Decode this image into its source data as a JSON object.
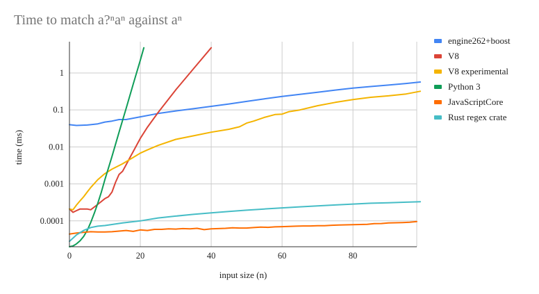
{
  "chart_data": {
    "type": "line",
    "title": "Time to match a?ⁿaⁿ against aⁿ",
    "xlabel": "input size (n)",
    "ylabel": "time (ms)",
    "xlim": [
      0,
      98
    ],
    "ylim": [
      2e-05,
      7
    ],
    "yscale": "log",
    "grid": true,
    "legend_position": "right",
    "x_ticks": [
      0,
      20,
      40,
      60,
      80
    ],
    "x_tick_labels": [
      "0",
      "20",
      "40",
      "60",
      "80"
    ],
    "y_ticks": [
      0.0001,
      0.001,
      0.01,
      0.1,
      1
    ],
    "y_tick_labels": [
      "0.0001",
      "0.001",
      "0.01",
      "0.1",
      "1"
    ],
    "series": [
      {
        "name": "engine262+boost",
        "color": "#4285f4",
        "x": [
          0,
          2,
          5,
          8,
          10,
          12,
          14,
          16,
          20,
          25,
          30,
          35,
          40,
          45,
          50,
          55,
          60,
          65,
          70,
          75,
          80,
          85,
          90,
          95,
          99
        ],
        "y": [
          0.04,
          0.038,
          0.039,
          0.042,
          0.047,
          0.05,
          0.055,
          0.055,
          0.065,
          0.08,
          0.094,
          0.108,
          0.125,
          0.145,
          0.17,
          0.2,
          0.232,
          0.265,
          0.3,
          0.345,
          0.39,
          0.43,
          0.47,
          0.52,
          0.57
        ]
      },
      {
        "name": "V8",
        "color": "#db4437",
        "x": [
          0,
          1,
          2,
          3,
          5,
          6,
          8,
          10,
          11,
          12,
          13,
          14,
          15,
          16,
          17,
          18,
          20,
          22,
          25,
          30,
          35,
          40
        ],
        "y": [
          0.00021,
          0.00017,
          0.00019,
          0.00021,
          0.00021,
          0.0002,
          0.00028,
          0.0004,
          0.00045,
          0.0006,
          0.0011,
          0.0018,
          0.0022,
          0.0033,
          0.005,
          0.0075,
          0.017,
          0.034,
          0.085,
          0.35,
          1.3,
          4.8
        ]
      },
      {
        "name": "V8 experimental",
        "color": "#f4b400",
        "x": [
          0,
          1,
          2,
          3,
          4,
          5,
          6,
          8,
          10,
          12,
          15,
          18,
          20,
          22,
          25,
          30,
          35,
          40,
          45,
          48,
          50,
          52,
          55,
          58,
          60,
          62,
          65,
          70,
          75,
          80,
          85,
          90,
          95,
          99
        ],
        "y": [
          0.00021,
          0.0002,
          0.00027,
          0.00035,
          0.00045,
          0.0006,
          0.0008,
          0.0013,
          0.0019,
          0.0025,
          0.0035,
          0.0052,
          0.0068,
          0.0083,
          0.011,
          0.016,
          0.02,
          0.025,
          0.03,
          0.035,
          0.044,
          0.05,
          0.063,
          0.075,
          0.077,
          0.09,
          0.1,
          0.13,
          0.16,
          0.19,
          0.22,
          0.24,
          0.27,
          0.32
        ]
      },
      {
        "name": "Python 3",
        "color": "#0f9d58",
        "x": [
          0,
          1,
          2,
          3,
          4,
          5,
          6,
          7,
          8,
          9,
          10,
          12,
          14,
          16,
          18,
          20,
          21
        ],
        "y": [
          2e-05,
          2.1e-05,
          2.4e-05,
          2.9e-05,
          3.8e-05,
          5.5e-05,
          9e-05,
          0.00016,
          0.0003,
          0.0006,
          0.0013,
          0.0055,
          0.025,
          0.11,
          0.5,
          2.2,
          4.8
        ]
      },
      {
        "name": "JavaScriptCore",
        "color": "#ff6d00",
        "x": [
          0,
          2,
          4,
          6,
          8,
          10,
          12,
          14,
          16,
          18,
          20,
          22,
          24,
          26,
          28,
          30,
          32,
          34,
          36,
          38,
          40,
          42,
          44,
          46,
          48,
          50,
          52,
          54,
          56,
          58,
          60,
          62,
          64,
          66,
          68,
          70,
          72,
          74,
          76,
          78,
          80,
          82,
          84,
          86,
          88,
          90,
          92,
          94,
          96,
          98
        ],
        "y": [
          4.4e-05,
          4.7e-05,
          4.9e-05,
          5.1e-05,
          5e-05,
          5e-05,
          5.1e-05,
          5.3e-05,
          5.5e-05,
          5.2e-05,
          5.7e-05,
          5.5e-05,
          5.9e-05,
          5.9e-05,
          6.1e-05,
          6e-05,
          6.2e-05,
          6.1e-05,
          6.3e-05,
          5.8e-05,
          6.1e-05,
          6.2e-05,
          6.3e-05,
          6.5e-05,
          6.4e-05,
          6.4e-05,
          6.6e-05,
          6.8e-05,
          6.7e-05,
          6.9e-05,
          7e-05,
          7.1e-05,
          7.2e-05,
          7.3e-05,
          7.3e-05,
          7.4e-05,
          7.4e-05,
          7.6e-05,
          7.7e-05,
          7.8e-05,
          7.9e-05,
          8e-05,
          8.1e-05,
          8.4e-05,
          8.5e-05,
          8.8e-05,
          8.9e-05,
          9e-05,
          9.2e-05,
          9.6e-05
        ]
      },
      {
        "name": "Rust regex crate",
        "color": "#46bdc6",
        "x": [
          0,
          2,
          4,
          6,
          8,
          10,
          15,
          20,
          25,
          30,
          35,
          40,
          45,
          50,
          55,
          60,
          65,
          70,
          75,
          80,
          85,
          90,
          95,
          99
        ],
        "y": [
          2.8e-05,
          4.2e-05,
          5.5e-05,
          6.6e-05,
          7.2e-05,
          7.5e-05,
          8.8e-05,
          0.0001,
          0.00012,
          0.000135,
          0.00015,
          0.000165,
          0.00018,
          0.000195,
          0.00021,
          0.000225,
          0.00024,
          0.000255,
          0.00027,
          0.000285,
          0.0003,
          0.00031,
          0.00032,
          0.00033
        ]
      }
    ]
  }
}
